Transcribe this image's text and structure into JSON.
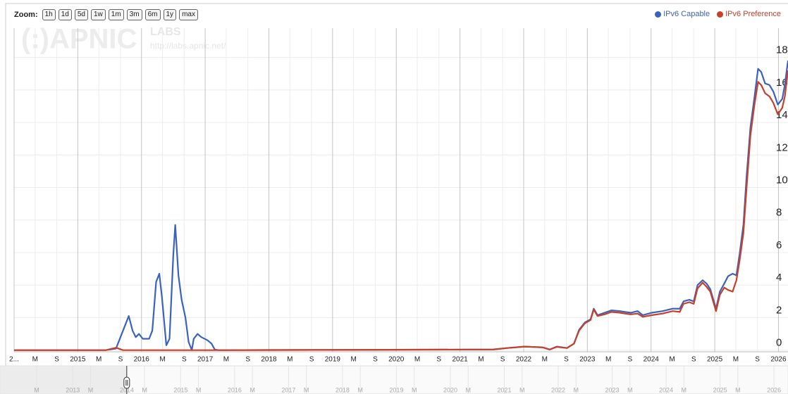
{
  "toolbar": {
    "label": "Zoom:",
    "buttons": [
      "1h",
      "1d",
      "5d",
      "1w",
      "1m",
      "3m",
      "6m",
      "1y",
      "max"
    ]
  },
  "watermark": {
    "logo": "(:)APNIC",
    "labs": "LABS",
    "url": "http://labs.apnic.net/"
  },
  "chart_data": {
    "type": "line",
    "x": [
      2014.0,
      2015.44,
      2015.6,
      2015.71,
      2015.8,
      2015.86,
      2015.91,
      2015.96,
      2016.02,
      2016.12,
      2016.17,
      2016.23,
      2016.28,
      2016.32,
      2016.39,
      2016.44,
      2016.5,
      2016.53,
      2016.58,
      2016.63,
      2016.69,
      2016.74,
      2016.79,
      2016.82,
      2016.88,
      2016.94,
      2017.04,
      2017.1,
      2017.15,
      2017.21,
      2021.52,
      2021.74,
      2022.02,
      2022.3,
      2022.41,
      2022.52,
      2022.68,
      2022.79,
      2022.87,
      2022.96,
      2023.05,
      2023.1,
      2023.16,
      2023.27,
      2023.38,
      2023.51,
      2023.68,
      2023.79,
      2023.87,
      2024.01,
      2024.18,
      2024.34,
      2024.45,
      2024.51,
      2024.6,
      2024.67,
      2024.73,
      2024.81,
      2024.87,
      2024.93,
      2025.02,
      2025.08,
      2025.15,
      2025.21,
      2025.28,
      2025.34,
      2025.39,
      2025.45,
      2025.5,
      2025.56,
      2025.62,
      2025.68,
      2025.73,
      2025.79,
      2025.86,
      2025.92,
      2025.99,
      2026.06,
      2026.1,
      2026.15
    ],
    "series": [
      {
        "name": "IPv6 Capable",
        "color": "#3a62c0",
        "values": [
          0,
          0,
          0.1,
          1.2,
          2.1,
          1.2,
          0.8,
          1.0,
          0.7,
          0.7,
          1.2,
          4.2,
          4.7,
          3.3,
          0.3,
          0.7,
          5.9,
          7.7,
          4.6,
          3.1,
          2.0,
          0.5,
          0,
          0.7,
          1.0,
          0.8,
          0.6,
          0.4,
          0.04,
          0,
          0.04,
          0.13,
          0.22,
          0.17,
          0.04,
          0.22,
          0.13,
          0.4,
          1.25,
          1.7,
          1.9,
          2.55,
          2.15,
          2.3,
          2.45,
          2.4,
          2.3,
          2.4,
          2.15,
          2.3,
          2.4,
          2.55,
          2.55,
          3.0,
          3.1,
          3.0,
          4.0,
          4.3,
          4.1,
          3.75,
          2.55,
          3.6,
          4.1,
          4.55,
          4.7,
          4.6,
          5.9,
          7.7,
          10.7,
          13.7,
          15.45,
          17.3,
          17.1,
          16.4,
          16.3,
          15.9,
          15.1,
          15.45,
          16.3,
          17.8
        ]
      },
      {
        "name": "IPv6 Preference",
        "color": "#c8402a",
        "values": [
          0,
          0,
          0.15,
          0,
          0,
          0,
          0,
          0,
          0,
          0,
          0,
          0,
          0,
          0,
          0,
          0,
          0,
          0,
          0,
          0,
          0,
          0,
          0,
          0,
          0,
          0,
          0,
          0,
          0,
          0,
          0.04,
          0.13,
          0.22,
          0.17,
          0.04,
          0.2,
          0.13,
          0.4,
          1.2,
          1.65,
          1.85,
          2.5,
          2.1,
          2.2,
          2.35,
          2.3,
          2.2,
          2.25,
          2.05,
          2.15,
          2.25,
          2.4,
          2.35,
          2.85,
          2.95,
          2.85,
          3.8,
          4.15,
          3.9,
          3.6,
          2.4,
          3.4,
          3.85,
          3.7,
          3.6,
          4.3,
          5.5,
          7.2,
          10.0,
          13.2,
          15.0,
          16.5,
          16.3,
          15.8,
          15.6,
          15.2,
          14.5,
          14.9,
          15.6,
          17.2
        ]
      }
    ],
    "xlim": [
      2014,
      2026.15
    ],
    "xticks": [
      {
        "value": 2014,
        "label": "2..."
      },
      {
        "value": 2014.33,
        "label": "M"
      },
      {
        "value": 2014.67,
        "label": "S"
      },
      2015,
      {
        "value": 2015.33,
        "label": "M"
      },
      {
        "value": 2015.67,
        "label": "S"
      },
      2016,
      {
        "value": 2016.33,
        "label": "M"
      },
      {
        "value": 2016.67,
        "label": "S"
      },
      2017,
      {
        "value": 2017.33,
        "label": "M"
      },
      {
        "value": 2017.67,
        "label": "S"
      },
      2018,
      {
        "value": 2018.33,
        "label": "M"
      },
      {
        "value": 2018.67,
        "label": "S"
      },
      2019,
      {
        "value": 2019.33,
        "label": "M"
      },
      {
        "value": 2019.67,
        "label": "S"
      },
      2020,
      {
        "value": 2020.33,
        "label": "M"
      },
      {
        "value": 2020.67,
        "label": "S"
      },
      2021,
      {
        "value": 2021.33,
        "label": "M"
      },
      {
        "value": 2021.67,
        "label": "S"
      },
      2022,
      {
        "value": 2022.33,
        "label": "M"
      },
      {
        "value": 2022.67,
        "label": "S"
      },
      2023,
      {
        "value": 2023.33,
        "label": "M"
      },
      {
        "value": 2023.67,
        "label": "S"
      },
      2024,
      {
        "value": 2024.33,
        "label": "M"
      },
      {
        "value": 2024.67,
        "label": "S"
      },
      2025,
      {
        "value": 2025.33,
        "label": "M"
      },
      {
        "value": 2025.67,
        "label": "S"
      },
      2026
    ],
    "ylim": [
      -0.1,
      19.8
    ],
    "yticks": [
      0,
      2,
      4,
      6,
      8,
      10,
      12,
      14,
      16,
      18
    ],
    "grid": true,
    "legend": "top-right",
    "navigator": {
      "xlim": [
        2011.65,
        2026.26
      ],
      "selected": [
        2014,
        2026.15
      ],
      "xticks": [
        {
          "value": 2012.33,
          "label": "M"
        },
        2013,
        {
          "value": 2013.33,
          "label": "M"
        },
        2014,
        {
          "value": 2014.33,
          "label": "M"
        },
        2015,
        {
          "value": 2015.33,
          "label": "M"
        },
        2016,
        {
          "value": 2016.33,
          "label": "M"
        },
        2017,
        {
          "value": 2017.33,
          "label": "M"
        },
        2018,
        {
          "value": 2018.33,
          "label": "M"
        },
        2019,
        {
          "value": 2019.33,
          "label": "M"
        },
        2020,
        {
          "value": 2020.33,
          "label": "M"
        },
        2021,
        {
          "value": 2021.33,
          "label": "M"
        },
        2022,
        {
          "value": 2022.33,
          "label": "M"
        },
        2023,
        {
          "value": 2023.33,
          "label": "M"
        },
        2024,
        {
          "value": 2024.33,
          "label": "M"
        },
        2025,
        {
          "value": 2025.33,
          "label": "M"
        },
        2026
      ]
    }
  }
}
